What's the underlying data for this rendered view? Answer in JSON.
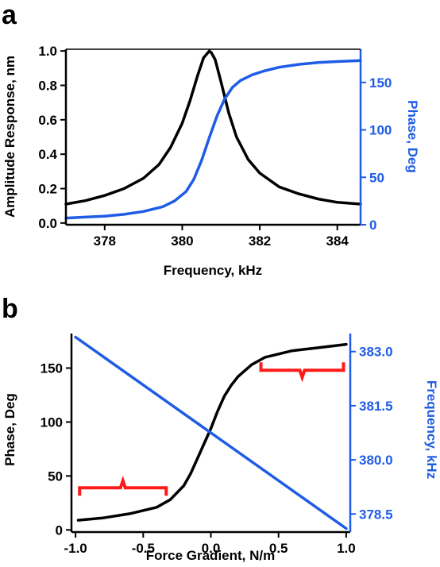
{
  "colors": {
    "black": "#000000",
    "blue": "#1f5ce6",
    "red": "#ff1a1a"
  },
  "chart_data": [
    {
      "panel_label": "a",
      "type": "line",
      "xlabel": "Frequency, kHz",
      "ylabel_left": "Amplitude Response, nm",
      "ylabel_right": "Phase, Deg",
      "xlim": [
        377.0,
        384.6
      ],
      "ylim_left": [
        -0.01,
        1.01
      ],
      "ylim_right": [
        0,
        185
      ],
      "xticks": [
        "378",
        "380",
        "382",
        "384"
      ],
      "yticks_left": [
        "0.0",
        "0.2",
        "0.4",
        "0.6",
        "0.8",
        "1.0"
      ],
      "yticks_right": [
        "0",
        "50",
        "100",
        "150"
      ],
      "series": [
        {
          "axis": "left",
          "color": "#000000",
          "x": [
            377.0,
            377.5,
            378.0,
            378.5,
            379.0,
            379.4,
            379.7,
            380.0,
            380.2,
            380.4,
            380.55,
            380.7,
            380.75,
            380.85,
            381.0,
            381.2,
            381.4,
            381.7,
            382.0,
            382.5,
            383.0,
            383.5,
            384.0,
            384.6
          ],
          "values": [
            0.11,
            0.13,
            0.16,
            0.2,
            0.26,
            0.34,
            0.44,
            0.58,
            0.71,
            0.86,
            0.96,
            1.0,
            0.99,
            0.95,
            0.82,
            0.64,
            0.5,
            0.37,
            0.29,
            0.21,
            0.17,
            0.14,
            0.12,
            0.11
          ]
        },
        {
          "axis": "right",
          "color": "#1f5ce6",
          "x": [
            377.0,
            377.5,
            378.0,
            378.5,
            379.0,
            379.5,
            379.8,
            380.1,
            380.3,
            380.5,
            380.7,
            380.9,
            381.1,
            381.3,
            381.5,
            381.8,
            382.1,
            382.5,
            383.0,
            383.5,
            384.0,
            384.6
          ],
          "values": [
            7,
            8,
            9,
            11,
            14,
            19,
            25,
            35,
            48,
            68,
            92,
            115,
            133,
            145,
            152,
            158,
            162,
            166,
            169,
            171,
            172,
            173
          ]
        }
      ]
    },
    {
      "panel_label": "b",
      "type": "line",
      "xlabel": "Force Gradient, N/m",
      "ylabel_left": "Phase, Deg",
      "ylabel_right": "Frequency, kHz",
      "xlim": [
        -1.03,
        1.03
      ],
      "ylim_left": [
        -2,
        182
      ],
      "ylim_right": [
        378.0,
        383.5
      ],
      "xticks": [
        "-1.0",
        "-0.5",
        "0.0",
        "0.5",
        "1.0"
      ],
      "yticks_left": [
        "0",
        "50",
        "100",
        "150"
      ],
      "yticks_right": [
        "378.5",
        "380.0",
        "381.5",
        "383.0"
      ],
      "series": [
        {
          "axis": "left",
          "color": "#000000",
          "x": [
            -0.98,
            -0.8,
            -0.6,
            -0.4,
            -0.3,
            -0.2,
            -0.15,
            -0.1,
            -0.05,
            0.0,
            0.05,
            0.1,
            0.15,
            0.2,
            0.3,
            0.4,
            0.6,
            0.8,
            1.0
          ],
          "values": [
            9,
            11,
            15,
            21,
            28,
            41,
            52,
            66,
            80,
            94,
            110,
            124,
            134,
            142,
            153,
            160,
            166,
            169,
            172
          ]
        },
        {
          "axis": "right",
          "color": "#1f5ce6",
          "x": [
            -1.0,
            1.0
          ],
          "values": [
            383.4,
            378.1
          ]
        }
      ],
      "annotations": [
        {
          "type": "brace",
          "x_from": -0.97,
          "x_to": -0.33,
          "y": 39,
          "pointing": "up",
          "color": "#ff1a1a"
        },
        {
          "type": "brace",
          "x_from": 0.37,
          "x_to": 0.98,
          "y": 148,
          "pointing": "down",
          "color": "#ff1a1a"
        }
      ]
    }
  ]
}
